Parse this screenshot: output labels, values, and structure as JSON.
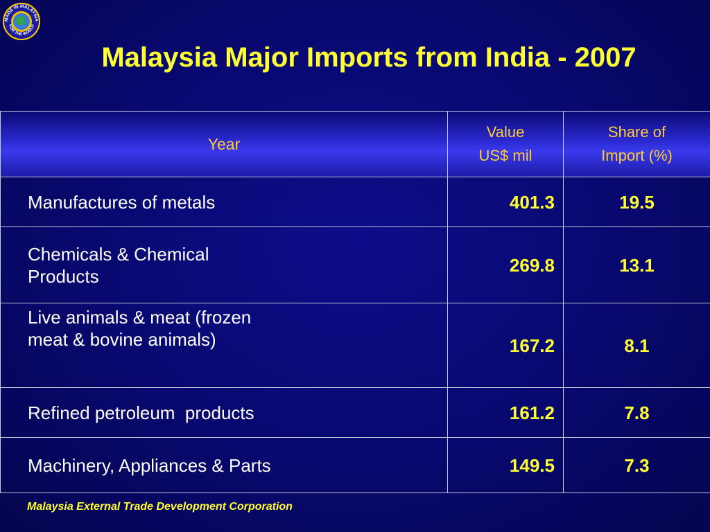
{
  "logo": {
    "icon": "made-in-malaysia-badge-icon",
    "text_top": "MADE IN MALAYSIA",
    "text_bottom": "FOR THE WORLD"
  },
  "title": "Malaysia Major Imports from India - 2007",
  "table": {
    "headers": {
      "year": "Year",
      "value_line1": "Value",
      "value_line2": "US$ mil",
      "share_line1": "Share of",
      "share_line2": "Import (%)"
    },
    "rows": [
      {
        "name_line1": "Manufactures of metals",
        "name_line2": "",
        "value": "401.3",
        "share": "19.5"
      },
      {
        "name_line1": "Chemicals & Chemical",
        "name_line2": "Products",
        "value": "269.8",
        "share": "13.1"
      },
      {
        "name_line1": "Live animals & meat (frozen",
        "name_line2": "meat & bovine animals)",
        "value": "167.2",
        "share": "8.1"
      },
      {
        "name_line1": "Refined petroleum  products",
        "name_line2": "",
        "value": "161.2",
        "share": "7.8"
      },
      {
        "name_line1": "Machinery, Appliances & Parts",
        "name_line2": "",
        "value": "149.5",
        "share": "7.3"
      }
    ]
  },
  "footer": "Malaysia External Trade Development Corporation",
  "colors": {
    "background": "#08086e",
    "title": "#ffff33",
    "header_text": "#ffcc33",
    "body_text": "#ffffff",
    "numbers": "#ffff33"
  }
}
